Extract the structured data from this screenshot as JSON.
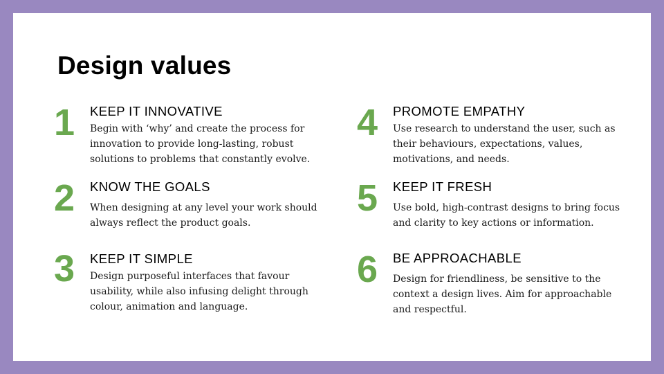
{
  "slide": {
    "title": "Design values",
    "accent_color": "#6aa84f",
    "frame_color": "#9988c0",
    "values": [
      {
        "number": "1",
        "heading": "KEEP IT INNOVATIVE",
        "description": "Begin with ‘why’ and create the process for innovation to provide long-lasting, robust solutions to problems that constantly evolve."
      },
      {
        "number": "2",
        "heading": "KNOW THE GOALS",
        "description": "When designing at any level your work should always reflect the product goals."
      },
      {
        "number": "3",
        "heading": "KEEP IT SIMPLE",
        "description": "Design purposeful interfaces that favour usability, while also infusing delight through colour, animation and language."
      },
      {
        "number": "4",
        "heading": "PROMOTE EMPATHY",
        "description": "Use research to understand the user, such as their behaviours, expectations, values, motivations, and needs."
      },
      {
        "number": "5",
        "heading": "KEEP IT FRESH",
        "description": "Use bold, high-contrast designs to bring focus and clarity to key actions or information."
      },
      {
        "number": "6",
        "heading": "BE APPROACHABLE",
        "description": "Design for friendliness, be sensitive to the context a design lives. Aim for approachable and respectful."
      }
    ]
  }
}
